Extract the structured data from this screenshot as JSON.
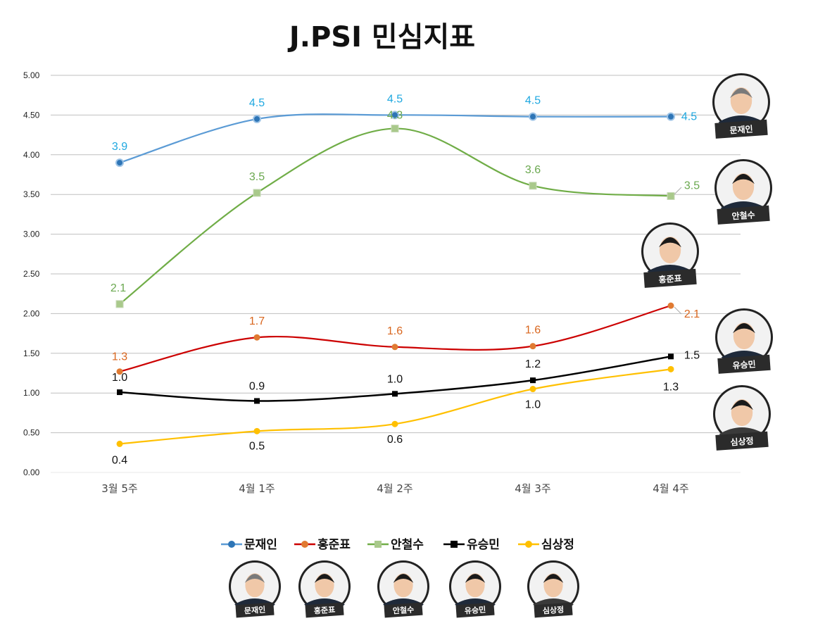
{
  "chart_data": {
    "type": "line",
    "title": "J.PSI 민심지표",
    "categories": [
      "3월 5주",
      "4월 1주",
      "4월 2주",
      "4월 3주",
      "4월 4주"
    ],
    "ylim": [
      0,
      5
    ],
    "yticks": [
      "0.00",
      "0.50",
      "1.00",
      "1.50",
      "2.00",
      "2.50",
      "3.00",
      "3.50",
      "4.00",
      "4.50",
      "5.00"
    ],
    "grid": true,
    "legend_position": "bottom",
    "series": [
      {
        "name": "문재인",
        "color": "#5b9bd5",
        "label_color": "#1fa8e0",
        "marker": "circle",
        "values": [
          3.9,
          4.45,
          4.5,
          4.48,
          4.48
        ],
        "labels": [
          "3.9",
          "4.5",
          "4.5",
          "4.5",
          "4.5"
        ]
      },
      {
        "name": "홍준표",
        "color": "#cc0000",
        "label_color": "#d9661e",
        "marker": "circle-orange",
        "values": [
          1.27,
          1.7,
          1.58,
          1.59,
          2.1
        ],
        "labels": [
          "1.3",
          "1.7",
          "1.6",
          "1.6",
          "2.1"
        ]
      },
      {
        "name": "안철수",
        "color": "#70ad47",
        "label_color": "#6aa84f",
        "marker": "square",
        "values": [
          2.12,
          3.52,
          4.33,
          3.61,
          3.48
        ],
        "labels": [
          "2.1",
          "3.5",
          "4.3",
          "3.6",
          "3.5"
        ]
      },
      {
        "name": "유승민",
        "color": "#000000",
        "label_color": "#111111",
        "marker": "square-black",
        "values": [
          1.01,
          0.9,
          0.99,
          1.16,
          1.46
        ],
        "labels": [
          "1.0",
          "0.9",
          "1.0",
          "1.2",
          "1.5"
        ]
      },
      {
        "name": "심상정",
        "color": "#ffc000",
        "label_color": "#111111",
        "marker": "circle-yellow",
        "values": [
          0.36,
          0.52,
          0.61,
          1.05,
          1.3
        ],
        "labels": [
          "0.4",
          "0.5",
          "0.6",
          "1.0",
          "1.3"
        ]
      }
    ]
  }
}
